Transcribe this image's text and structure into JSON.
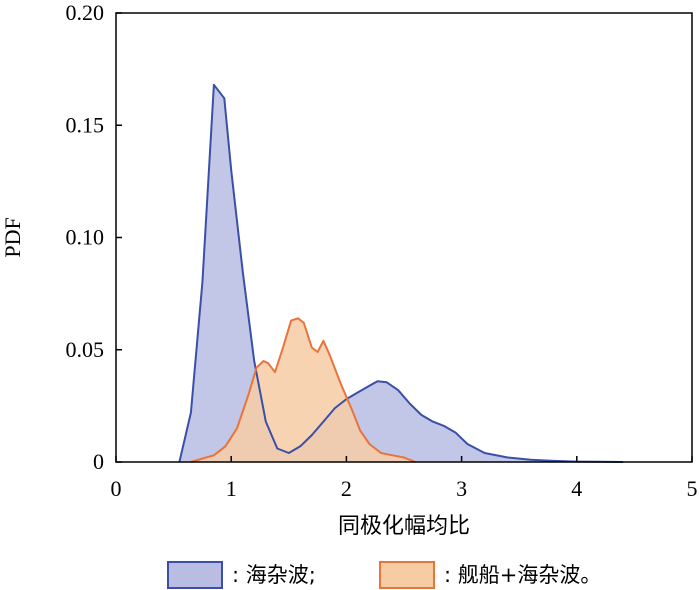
{
  "chart_data": {
    "type": "area",
    "xlabel": "同极化幅均比",
    "ylabel": "PDF",
    "xlim": [
      0,
      5
    ],
    "ylim": [
      0,
      0.2
    ],
    "x_ticks": [
      "0",
      "1",
      "2",
      "3",
      "4",
      "5"
    ],
    "y_ticks": [
      "0",
      "0.05",
      "0.10",
      "0.15",
      "0.20"
    ],
    "grid": false,
    "legend_position": "bottom",
    "series": [
      {
        "name": ": 海杂波;",
        "stroke": "#3a4fa8",
        "fill": "#b9bde3",
        "points": [
          [
            0.55,
            0
          ],
          [
            0.65,
            0.022
          ],
          [
            0.75,
            0.08
          ],
          [
            0.85,
            0.168
          ],
          [
            0.94,
            0.162
          ],
          [
            1.0,
            0.13
          ],
          [
            1.1,
            0.085
          ],
          [
            1.2,
            0.045
          ],
          [
            1.3,
            0.018
          ],
          [
            1.4,
            0.006
          ],
          [
            1.5,
            0.004
          ],
          [
            1.6,
            0.007
          ],
          [
            1.7,
            0.012
          ],
          [
            1.8,
            0.018
          ],
          [
            1.9,
            0.024
          ],
          [
            2.0,
            0.028
          ],
          [
            2.1,
            0.031
          ],
          [
            2.2,
            0.034
          ],
          [
            2.27,
            0.036
          ],
          [
            2.35,
            0.0355
          ],
          [
            2.45,
            0.032
          ],
          [
            2.55,
            0.026
          ],
          [
            2.65,
            0.021
          ],
          [
            2.75,
            0.018
          ],
          [
            2.85,
            0.016
          ],
          [
            2.95,
            0.013
          ],
          [
            3.05,
            0.008
          ],
          [
            3.2,
            0.004
          ],
          [
            3.4,
            0.002
          ],
          [
            3.6,
            0.001
          ],
          [
            3.8,
            0.0005
          ],
          [
            4.0,
            0.0002
          ],
          [
            4.2,
            0.0001
          ],
          [
            4.4,
            0
          ]
        ]
      },
      {
        "name": ": 舰船+海杂波。",
        "stroke": "#e8743b",
        "fill": "#f7cba4",
        "points": [
          [
            0.65,
            0
          ],
          [
            0.75,
            0.0015
          ],
          [
            0.85,
            0.003
          ],
          [
            0.95,
            0.007
          ],
          [
            1.05,
            0.015
          ],
          [
            1.15,
            0.03
          ],
          [
            1.22,
            0.042
          ],
          [
            1.28,
            0.045
          ],
          [
            1.32,
            0.044
          ],
          [
            1.38,
            0.04
          ],
          [
            1.45,
            0.051
          ],
          [
            1.52,
            0.063
          ],
          [
            1.58,
            0.064
          ],
          [
            1.63,
            0.062
          ],
          [
            1.7,
            0.051
          ],
          [
            1.75,
            0.049
          ],
          [
            1.8,
            0.054
          ],
          [
            1.86,
            0.047
          ],
          [
            1.95,
            0.035
          ],
          [
            2.05,
            0.023
          ],
          [
            2.12,
            0.014
          ],
          [
            2.2,
            0.008
          ],
          [
            2.3,
            0.004
          ],
          [
            2.4,
            0.003
          ],
          [
            2.5,
            0.002
          ],
          [
            2.6,
            0
          ]
        ]
      }
    ]
  }
}
